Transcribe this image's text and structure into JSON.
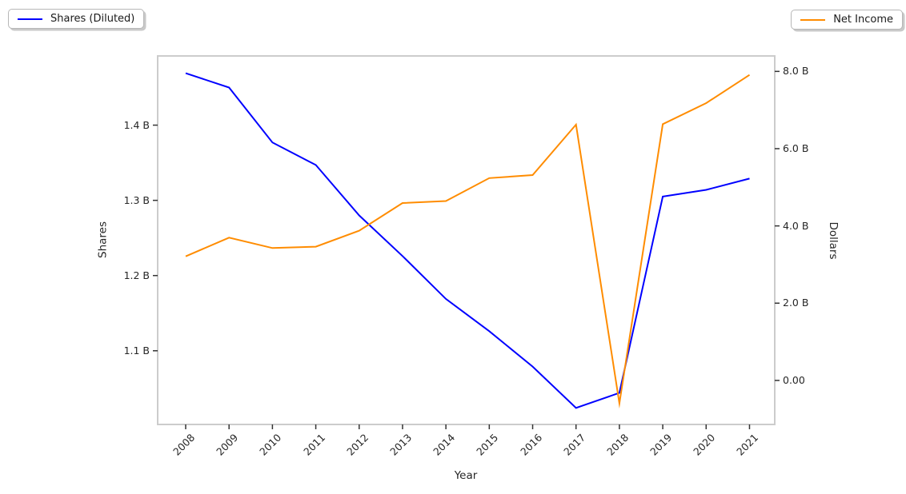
{
  "chart_data": {
    "type": "line",
    "title": "",
    "xlabel": "Year",
    "x": [
      2008,
      2009,
      2010,
      2011,
      2012,
      2013,
      2014,
      2015,
      2016,
      2017,
      2018,
      2019,
      2020,
      2021
    ],
    "series": [
      {
        "name": "Shares (Diluted)",
        "yaxis": "left",
        "color": "#0000ff",
        "values": [
          1.469,
          1.45,
          1.377,
          1.347,
          1.28,
          1.226,
          1.169,
          1.126,
          1.079,
          1.024,
          1.044,
          1.305,
          1.314,
          1.329
        ]
      },
      {
        "name": "Net Income",
        "yaxis": "right",
        "color": "#ff8c00",
        "values": [
          3.212,
          3.696,
          3.427,
          3.462,
          3.877,
          4.592,
          4.644,
          5.237,
          5.317,
          6.622,
          -0.594,
          6.634,
          7.179,
          7.91
        ]
      }
    ],
    "axes": {
      "left": {
        "label": "Shares",
        "tick_values": [
          1.1,
          1.2,
          1.3,
          1.4
        ],
        "tick_labels": [
          "1.1 B",
          "1.2 B",
          "1.3 B",
          "1.4 B"
        ],
        "range": [
          1.002,
          1.492
        ]
      },
      "right": {
        "label": "Dollars",
        "tick_values": [
          0,
          2,
          4,
          6,
          8
        ],
        "tick_labels": [
          "0.00",
          "2.0 B",
          "4.0 B",
          "6.0 B",
          "8.0 B"
        ],
        "range": [
          -1.14,
          8.4
        ]
      },
      "x": {
        "tick_labels": [
          "2008",
          "2009",
          "2010",
          "2011",
          "2012",
          "2013",
          "2014",
          "2015",
          "2016",
          "2017",
          "2018",
          "2019",
          "2020",
          "2021"
        ],
        "label_rotation_deg": 45
      }
    },
    "grid": false,
    "legend_position": "outside top-left and outside top-right"
  }
}
